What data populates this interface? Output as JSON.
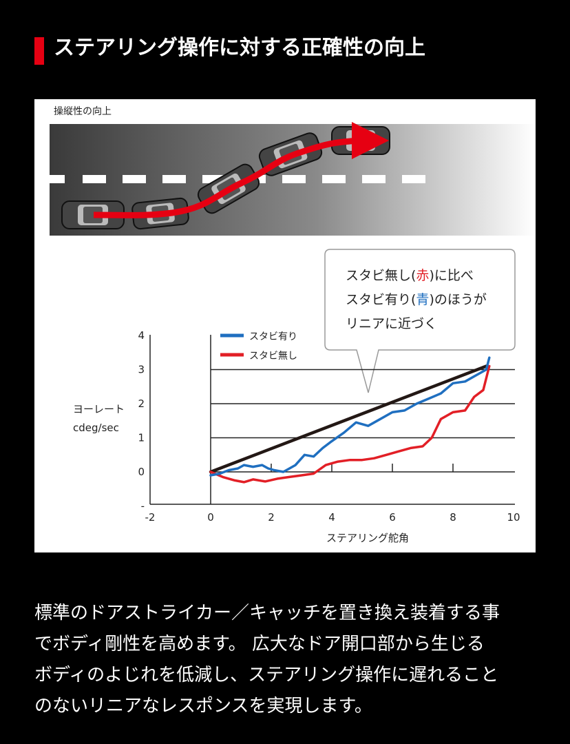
{
  "header": {
    "title": "ステアリング操作に対する正確性の向上"
  },
  "illustration": {
    "label": "操縦性の向上"
  },
  "callout": {
    "line1_a": "スタビ無し(",
    "line1_b": "赤",
    "line1_c": ")に比べ",
    "line2_a": "スタビ有り(",
    "line2_b": "青",
    "line2_c": ")のほうが",
    "line3": "リニアに近づく"
  },
  "colors": {
    "accent": "#e60012",
    "blue_series": "#1f6fc0",
    "red_series": "#e21f26",
    "reference": "#231815"
  },
  "chart_data": {
    "type": "line",
    "xlabel": "ステアリング舵角",
    "ylabel_line1": "ヨーレート",
    "ylabel_line2": "cdeg/sec",
    "xlim": [
      -2,
      10
    ],
    "ylim": [
      -1,
      4
    ],
    "x_ticks": [
      "-2",
      "0",
      "2",
      "4",
      "6",
      "8",
      "10"
    ],
    "y_ticks": [
      "4",
      "3",
      "2",
      "1",
      "0",
      "-"
    ],
    "grid": true,
    "legend_position": "top-left",
    "series": [
      {
        "name": "スタビ有り",
        "color": "#1f6fc0",
        "x": [
          0,
          0.3,
          0.6,
          0.9,
          1.1,
          1.4,
          1.7,
          1.9,
          2.1,
          2.4,
          2.8,
          3.1,
          3.4,
          3.7,
          4.0,
          4.4,
          4.8,
          5.2,
          5.6,
          6.0,
          6.4,
          6.8,
          7.2,
          7.6,
          8.0,
          8.4,
          8.8,
          9.1,
          9.2
        ],
        "y": [
          -0.1,
          -0.05,
          0.05,
          0.1,
          0.2,
          0.15,
          0.2,
          0.1,
          0.05,
          0.0,
          0.2,
          0.5,
          0.45,
          0.7,
          0.9,
          1.15,
          1.45,
          1.35,
          1.55,
          1.75,
          1.8,
          2.0,
          2.15,
          2.3,
          2.6,
          2.65,
          2.85,
          3.0,
          3.35
        ]
      },
      {
        "name": "スタビ無し",
        "color": "#e21f26",
        "x": [
          0,
          0.4,
          0.8,
          1.1,
          1.4,
          1.8,
          2.2,
          2.6,
          3.0,
          3.4,
          3.8,
          4.2,
          4.6,
          5.0,
          5.4,
          5.8,
          6.2,
          6.6,
          7.0,
          7.3,
          7.6,
          8.0,
          8.4,
          8.7,
          9.0,
          9.2
        ],
        "y": [
          0,
          -0.15,
          -0.25,
          -0.3,
          -0.22,
          -0.28,
          -0.2,
          -0.15,
          -0.1,
          -0.05,
          0.2,
          0.3,
          0.35,
          0.35,
          0.4,
          0.5,
          0.6,
          0.7,
          0.75,
          1.0,
          1.55,
          1.75,
          1.8,
          2.2,
          2.4,
          3.1
        ]
      },
      {
        "name": "",
        "color": "#231815",
        "x": [
          0,
          9.1
        ],
        "y": [
          0,
          3.1
        ]
      }
    ]
  },
  "body": {
    "lines": [
      "標準のドアストライカー／キャッチを置き換え装着する事",
      "でボディ剛性を高めます。 広大なドア開口部から生じる",
      "ボディのよじれを低減し、ステアリング操作に遅れること",
      "のないリニアなレスポンスを実現します。"
    ]
  }
}
